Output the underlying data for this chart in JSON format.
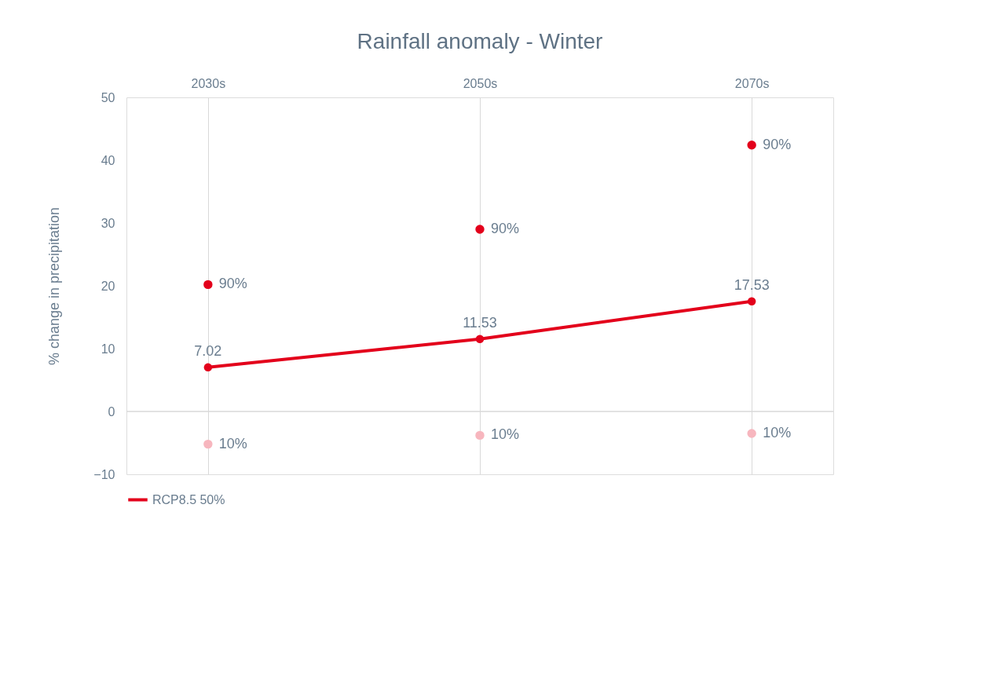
{
  "chart_data": {
    "type": "line",
    "title": "Rainfall anomaly - Winter",
    "ylabel": "% change in precipitation",
    "categories": [
      "2030s",
      "2050s",
      "2070s"
    ],
    "series": [
      {
        "name": "RCP8.5 50%",
        "color": "#e3001b",
        "values": [
          7.02,
          11.53,
          17.53
        ],
        "value_labels": [
          "7.02",
          "11.53",
          "17.53"
        ]
      },
      {
        "name": "90%",
        "type": "scatter",
        "color": "#e3001b",
        "values": [
          20.2,
          29.0,
          42.4
        ]
      },
      {
        "name": "10%",
        "type": "scatter",
        "color": "#f7b6be",
        "values": [
          -5.2,
          -3.8,
          -3.5
        ]
      }
    ],
    "ylim": [
      -10,
      50
    ],
    "yticks": [
      -10,
      0,
      10,
      20,
      30,
      40,
      50
    ],
    "grid": "x",
    "legend": "bottom",
    "marker": "circle",
    "line_style": "solid",
    "ref_lines": [
      {
        "axis": "y",
        "value": 0,
        "color": "#d9d9d9"
      }
    ]
  }
}
